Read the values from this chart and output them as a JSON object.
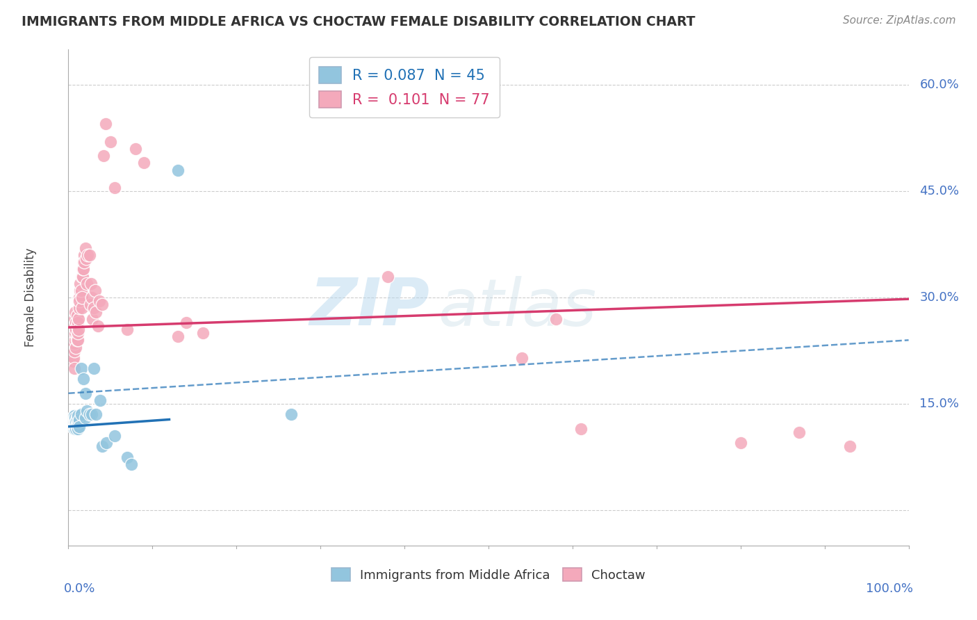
{
  "title": "IMMIGRANTS FROM MIDDLE AFRICA VS CHOCTAW FEMALE DISABILITY CORRELATION CHART",
  "source": "Source: ZipAtlas.com",
  "ylabel": "Female Disability",
  "xlim": [
    0.0,
    1.0
  ],
  "ylim": [
    -0.05,
    0.65
  ],
  "yticks": [
    0.0,
    0.15,
    0.3,
    0.45,
    0.6
  ],
  "ytick_labels": [
    "",
    "15.0%",
    "30.0%",
    "45.0%",
    "60.0%"
  ],
  "xtick_labels": [
    "0.0%",
    "100.0%"
  ],
  "legend_blue_R": "0.087",
  "legend_blue_N": "45",
  "legend_pink_R": "0.101",
  "legend_pink_N": "77",
  "blue_color": "#92c5de",
  "pink_color": "#f4a9bb",
  "blue_line_color": "#2171b5",
  "pink_line_color": "#d63b6e",
  "watermark_zip": "ZIP",
  "watermark_atlas": "atlas",
  "blue_points": [
    [
      0.005,
      0.125
    ],
    [
      0.005,
      0.13
    ],
    [
      0.005,
      0.118
    ],
    [
      0.005,
      0.122
    ],
    [
      0.007,
      0.128
    ],
    [
      0.007,
      0.132
    ],
    [
      0.007,
      0.115
    ],
    [
      0.007,
      0.12
    ],
    [
      0.007,
      0.125
    ],
    [
      0.007,
      0.133
    ],
    [
      0.008,
      0.128
    ],
    [
      0.008,
      0.122
    ],
    [
      0.008,
      0.118
    ],
    [
      0.008,
      0.13
    ],
    [
      0.009,
      0.12
    ],
    [
      0.009,
      0.115
    ],
    [
      0.009,
      0.125
    ],
    [
      0.01,
      0.13
    ],
    [
      0.01,
      0.122
    ],
    [
      0.01,
      0.118
    ],
    [
      0.01,
      0.128
    ],
    [
      0.011,
      0.133
    ],
    [
      0.011,
      0.12
    ],
    [
      0.011,
      0.115
    ],
    [
      0.012,
      0.125
    ],
    [
      0.013,
      0.128
    ],
    [
      0.013,
      0.118
    ],
    [
      0.015,
      0.135
    ],
    [
      0.015,
      0.2
    ],
    [
      0.018,
      0.185
    ],
    [
      0.02,
      0.165
    ],
    [
      0.02,
      0.13
    ],
    [
      0.022,
      0.14
    ],
    [
      0.025,
      0.135
    ],
    [
      0.028,
      0.135
    ],
    [
      0.03,
      0.2
    ],
    [
      0.033,
      0.135
    ],
    [
      0.038,
      0.155
    ],
    [
      0.04,
      0.09
    ],
    [
      0.045,
      0.095
    ],
    [
      0.055,
      0.105
    ],
    [
      0.07,
      0.075
    ],
    [
      0.075,
      0.065
    ],
    [
      0.13,
      0.48
    ],
    [
      0.265,
      0.135
    ]
  ],
  "pink_points": [
    [
      0.005,
      0.245
    ],
    [
      0.005,
      0.235
    ],
    [
      0.005,
      0.22
    ],
    [
      0.005,
      0.25
    ],
    [
      0.006,
      0.21
    ],
    [
      0.006,
      0.24
    ],
    [
      0.006,
      0.23
    ],
    [
      0.006,
      0.215
    ],
    [
      0.007,
      0.255
    ],
    [
      0.007,
      0.248
    ],
    [
      0.007,
      0.225
    ],
    [
      0.007,
      0.235
    ],
    [
      0.007,
      0.27
    ],
    [
      0.007,
      0.26
    ],
    [
      0.007,
      0.2
    ],
    [
      0.008,
      0.28
    ],
    [
      0.008,
      0.24
    ],
    [
      0.008,
      0.25
    ],
    [
      0.009,
      0.23
    ],
    [
      0.009,
      0.255
    ],
    [
      0.009,
      0.265
    ],
    [
      0.01,
      0.245
    ],
    [
      0.01,
      0.26
    ],
    [
      0.01,
      0.24
    ],
    [
      0.01,
      0.275
    ],
    [
      0.011,
      0.24
    ],
    [
      0.011,
      0.265
    ],
    [
      0.011,
      0.25
    ],
    [
      0.012,
      0.255
    ],
    [
      0.012,
      0.27
    ],
    [
      0.013,
      0.3
    ],
    [
      0.013,
      0.285
    ],
    [
      0.013,
      0.295
    ],
    [
      0.014,
      0.31
    ],
    [
      0.014,
      0.32
    ],
    [
      0.015,
      0.31
    ],
    [
      0.016,
      0.285
    ],
    [
      0.016,
      0.33
    ],
    [
      0.016,
      0.3
    ],
    [
      0.017,
      0.33
    ],
    [
      0.017,
      0.34
    ],
    [
      0.018,
      0.35
    ],
    [
      0.018,
      0.34
    ],
    [
      0.019,
      0.36
    ],
    [
      0.019,
      0.35
    ],
    [
      0.02,
      0.37
    ],
    [
      0.021,
      0.355
    ],
    [
      0.022,
      0.32
    ],
    [
      0.023,
      0.36
    ],
    [
      0.025,
      0.36
    ],
    [
      0.026,
      0.29
    ],
    [
      0.027,
      0.32
    ],
    [
      0.028,
      0.3
    ],
    [
      0.029,
      0.27
    ],
    [
      0.03,
      0.285
    ],
    [
      0.032,
      0.31
    ],
    [
      0.033,
      0.28
    ],
    [
      0.035,
      0.26
    ],
    [
      0.037,
      0.295
    ],
    [
      0.04,
      0.29
    ],
    [
      0.042,
      0.5
    ],
    [
      0.044,
      0.545
    ],
    [
      0.05,
      0.52
    ],
    [
      0.055,
      0.455
    ],
    [
      0.07,
      0.255
    ],
    [
      0.08,
      0.51
    ],
    [
      0.09,
      0.49
    ],
    [
      0.13,
      0.245
    ],
    [
      0.14,
      0.265
    ],
    [
      0.16,
      0.25
    ],
    [
      0.38,
      0.33
    ],
    [
      0.54,
      0.215
    ],
    [
      0.58,
      0.27
    ],
    [
      0.61,
      0.115
    ],
    [
      0.8,
      0.095
    ],
    [
      0.87,
      0.11
    ],
    [
      0.93,
      0.09
    ]
  ],
  "blue_solid_line": {
    "x0": 0.0,
    "y0": 0.118,
    "x1": 0.12,
    "y1": 0.128
  },
  "blue_dashed_line": {
    "x0": 0.0,
    "y0": 0.165,
    "x1": 1.0,
    "y1": 0.24
  },
  "pink_solid_line": {
    "x0": 0.0,
    "y0": 0.258,
    "x1": 1.0,
    "y1": 0.298
  }
}
